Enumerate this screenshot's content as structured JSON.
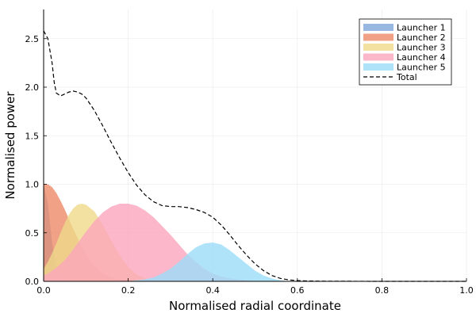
{
  "chart_data": {
    "type": "area",
    "title": "",
    "xlabel": "Normalised radial coordinate",
    "ylabel": "Normalised power",
    "xlim": [
      0,
      1
    ],
    "ylim": [
      0,
      2.8
    ],
    "x_ticks": [
      "0.0",
      "0.2",
      "0.4",
      "0.6",
      "0.8",
      "1.0"
    ],
    "y_ticks": [
      "0.0",
      "0.5",
      "1.0",
      "1.5",
      "2.0",
      "2.5"
    ],
    "grid": true,
    "legend_position": "top-right",
    "x": [
      0.0,
      0.01,
      0.02,
      0.03,
      0.04,
      0.05,
      0.06,
      0.07,
      0.08,
      0.09,
      0.1,
      0.12,
      0.14,
      0.16,
      0.18,
      0.2,
      0.22,
      0.24,
      0.26,
      0.28,
      0.3,
      0.32,
      0.34,
      0.36,
      0.38,
      0.4,
      0.42,
      0.44,
      0.46,
      0.48,
      0.5,
      0.52,
      0.54,
      0.56,
      0.58,
      0.6,
      0.62,
      0.65,
      0.7,
      0.8,
      0.9,
      1.0
    ],
    "series": [
      {
        "name": "Launcher 1",
        "color": "#7ea6da",
        "values": [
          1.0,
          0.8,
          0.4,
          0.15,
          0.04,
          0.01,
          0.0,
          0.0,
          0.0,
          0.0,
          0.0,
          0.0,
          0.0,
          0.0,
          0.0,
          0.0,
          0.0,
          0.0,
          0.0,
          0.0,
          0.0,
          0.0,
          0.0,
          0.0,
          0.0,
          0.0,
          0.0,
          0.0,
          0.0,
          0.0,
          0.0,
          0.0,
          0.0,
          0.0,
          0.0,
          0.0,
          0.0,
          0.0,
          0.0,
          0.0,
          0.0,
          0.0
        ]
      },
      {
        "name": "Launcher 2",
        "color": "#ee8a68",
        "values": [
          1.0,
          1.0,
          0.97,
          0.91,
          0.83,
          0.74,
          0.64,
          0.54,
          0.45,
          0.36,
          0.28,
          0.16,
          0.08,
          0.04,
          0.02,
          0.01,
          0.0,
          0.0,
          0.0,
          0.0,
          0.0,
          0.0,
          0.0,
          0.0,
          0.0,
          0.0,
          0.0,
          0.0,
          0.0,
          0.0,
          0.0,
          0.0,
          0.0,
          0.0,
          0.0,
          0.0,
          0.0,
          0.0,
          0.0,
          0.0,
          0.0,
          0.0
        ]
      },
      {
        "name": "Launcher 3",
        "color": "#efd98a",
        "values": [
          0.13,
          0.2,
          0.29,
          0.39,
          0.5,
          0.6,
          0.69,
          0.75,
          0.79,
          0.8,
          0.79,
          0.72,
          0.58,
          0.42,
          0.27,
          0.15,
          0.07,
          0.03,
          0.01,
          0.0,
          0.0,
          0.0,
          0.0,
          0.0,
          0.0,
          0.0,
          0.0,
          0.0,
          0.0,
          0.0,
          0.0,
          0.0,
          0.0,
          0.0,
          0.0,
          0.0,
          0.0,
          0.0,
          0.0,
          0.0,
          0.0,
          0.0
        ]
      },
      {
        "name": "Launcher 4",
        "color": "#fba6bd",
        "values": [
          0.06,
          0.08,
          0.11,
          0.14,
          0.18,
          0.22,
          0.27,
          0.33,
          0.39,
          0.45,
          0.51,
          0.62,
          0.71,
          0.77,
          0.8,
          0.8,
          0.78,
          0.73,
          0.66,
          0.57,
          0.48,
          0.38,
          0.28,
          0.2,
          0.13,
          0.08,
          0.05,
          0.03,
          0.02,
          0.01,
          0.0,
          0.0,
          0.0,
          0.0,
          0.0,
          0.0,
          0.0,
          0.0,
          0.0,
          0.0,
          0.0,
          0.0
        ]
      },
      {
        "name": "Launcher 5",
        "color": "#9bdcf9",
        "values": [
          0.0,
          0.0,
          0.0,
          0.0,
          0.0,
          0.0,
          0.0,
          0.0,
          0.0,
          0.0,
          0.0,
          0.0,
          0.0,
          0.0,
          0.0,
          0.0,
          0.01,
          0.02,
          0.04,
          0.08,
          0.13,
          0.2,
          0.28,
          0.35,
          0.39,
          0.4,
          0.38,
          0.32,
          0.25,
          0.18,
          0.11,
          0.06,
          0.03,
          0.01,
          0.0,
          0.0,
          0.0,
          0.0,
          0.0,
          0.0,
          0.0,
          0.0
        ]
      }
    ],
    "total": {
      "name": "Total",
      "color": "#000000",
      "style": "dashed",
      "x": [
        0.0,
        0.01,
        0.02,
        0.025,
        0.03,
        0.04,
        0.05,
        0.06,
        0.07,
        0.08,
        0.09,
        0.1,
        0.12,
        0.14,
        0.16,
        0.18,
        0.2,
        0.22,
        0.24,
        0.26,
        0.28,
        0.3,
        0.32,
        0.34,
        0.36,
        0.38,
        0.4,
        0.42,
        0.44,
        0.46,
        0.48,
        0.5,
        0.52,
        0.54,
        0.56,
        0.58,
        0.6,
        0.62,
        0.65,
        0.7,
        0.8,
        0.9,
        1.0
      ],
      "values": [
        2.58,
        2.5,
        2.25,
        2.05,
        1.94,
        1.91,
        1.93,
        1.95,
        1.96,
        1.95,
        1.93,
        1.89,
        1.76,
        1.6,
        1.43,
        1.27,
        1.12,
        0.99,
        0.89,
        0.82,
        0.78,
        0.77,
        0.77,
        0.76,
        0.74,
        0.71,
        0.66,
        0.58,
        0.48,
        0.37,
        0.27,
        0.18,
        0.11,
        0.06,
        0.03,
        0.015,
        0.008,
        0.004,
        0.002,
        0.001,
        0.0,
        0.0,
        0.0
      ]
    }
  }
}
